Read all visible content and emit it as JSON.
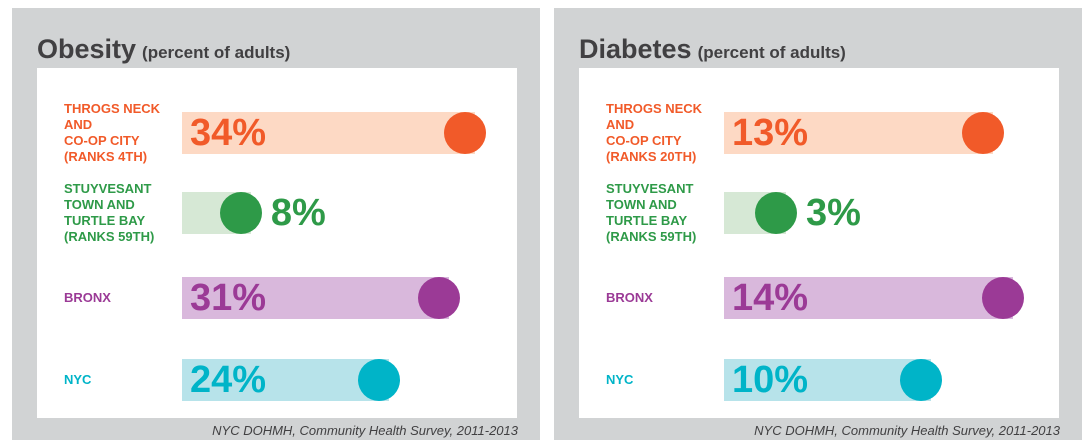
{
  "chart_data": [
    {
      "type": "bar",
      "title": "Obesity",
      "subtitle": "(percent of adults)",
      "source": "NYC DOHMH, Community Health Survey, 2011-2013",
      "categories": [
        "THROGS NECK\nAND\nCO-OP CITY\n(RANKS 4TH)",
        "STUYVESANT\nTOWN AND\nTURTLE BAY\n(RANKS 59TH)",
        "BRONX",
        "NYC"
      ],
      "values": [
        34,
        8,
        31,
        24
      ],
      "value_labels": [
        "34%",
        "8%",
        "31%",
        "24%"
      ],
      "colors": [
        "#f15a29",
        "#2e9a48",
        "#9b3a96",
        "#00b4c8"
      ],
      "bar_colors": [
        "#fdd9c4",
        "#d6e8d5",
        "#d9b8dc",
        "#b7e3ea"
      ],
      "xlim": [
        0,
        36
      ]
    },
    {
      "type": "bar",
      "title": "Diabetes",
      "subtitle": "(percent of adults)",
      "source": "NYC DOHMH, Community Health Survey, 2011-2013",
      "categories": [
        "THROGS NECK\nAND\nCO-OP CITY\n(RANKS 20TH)",
        "STUYVESANT\nTOWN AND\nTURTLE BAY\n(RANKS 59TH)",
        "BRONX",
        "NYC"
      ],
      "values": [
        13,
        3,
        14,
        10
      ],
      "value_labels": [
        "13%",
        "3%",
        "14%",
        "10%"
      ],
      "colors": [
        "#f15a29",
        "#2e9a48",
        "#9b3a96",
        "#00b4c8"
      ],
      "bar_colors": [
        "#fdd9c4",
        "#d6e8d5",
        "#d9b8dc",
        "#b7e3ea"
      ],
      "xlim": [
        0,
        15
      ]
    }
  ]
}
